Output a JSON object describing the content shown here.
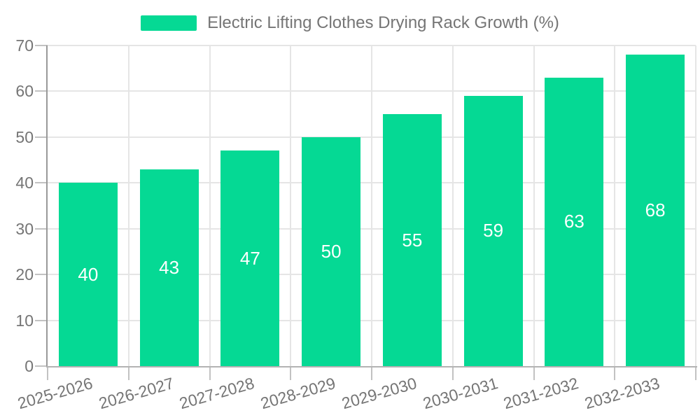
{
  "legend": {
    "label": "Electric Lifting Clothes Drying Rack Growth (%)"
  },
  "chart_data": {
    "type": "bar",
    "title": "Electric Lifting Clothes Drying Rack Growth (%)",
    "series_name": "Electric Lifting Clothes Drying Rack Growth (%)",
    "categories": [
      "2025-2026",
      "2026-2027",
      "2027-2028",
      "2028-2029",
      "2029-2030",
      "2030-2031",
      "2031-2032",
      "2032-2033"
    ],
    "values": [
      40,
      43,
      47,
      50,
      55,
      59,
      63,
      68
    ],
    "xlabel": "",
    "ylabel": "",
    "ylim": [
      0,
      70
    ],
    "y_ticks": [
      0,
      10,
      20,
      30,
      40,
      50,
      60,
      70
    ],
    "grid": true,
    "legend_position": "top-center",
    "value_labels": "inside-center",
    "x_label_rotation_deg": -16,
    "colors": {
      "bar": "#05D994",
      "value_label": "#FFFFFF",
      "axis_text": "#757575",
      "grid_line": "#E5E5E5",
      "y_axis_line": "#999999",
      "x_axis_line": "#B3B3B3",
      "tick": "#C2C2C2",
      "background": "#FFFFFF"
    }
  }
}
